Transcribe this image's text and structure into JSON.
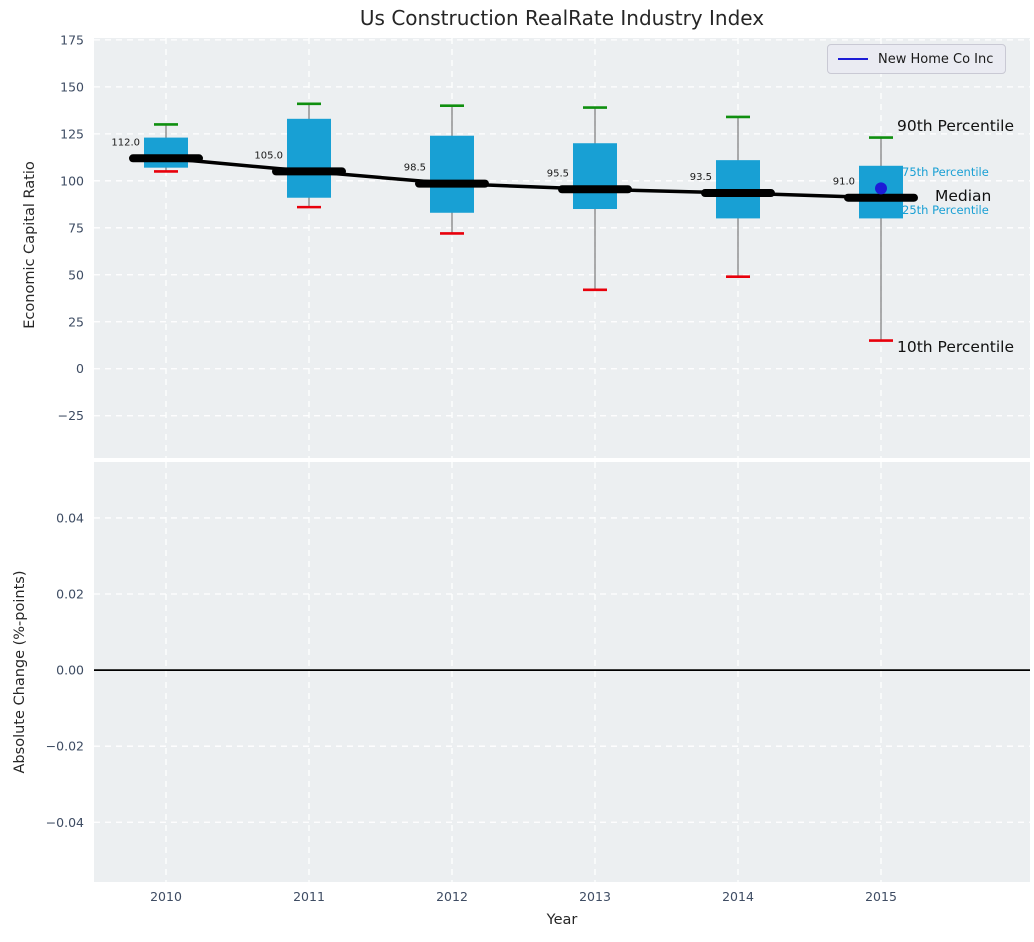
{
  "title": "Us Construction RealRate Industry Index",
  "legend": {
    "label": "New Home Co Inc"
  },
  "colors": {
    "panel_background": "#eceff1",
    "grid": "#ffffff",
    "box_fill": "#18a0d4",
    "whisker": "#7a7a7a",
    "cap_top": "#0f8f0f",
    "cap_bottom": "#e8000b",
    "median_line": "#000000",
    "company_marker": "#1c1cd6",
    "tick_label": "#3e4c63",
    "median_label": "#1a1a1a",
    "annotation_minor": "#189fd4",
    "zero_line": "#000000"
  },
  "chart_data": [
    {
      "type": "boxplot",
      "panel": "top",
      "title": "Us Construction RealRate Industry Index",
      "ylabel": "Economic Capital Ratio",
      "ylim": [
        -47.5,
        176
      ],
      "yticks": [
        {
          "v": 175,
          "label": "175"
        },
        {
          "v": 150,
          "label": "150"
        },
        {
          "v": 125,
          "label": "125"
        },
        {
          "v": 100,
          "label": "100"
        },
        {
          "v": 75,
          "label": "75"
        },
        {
          "v": 50,
          "label": "50"
        },
        {
          "v": 25,
          "label": "25"
        },
        {
          "v": 0,
          "label": "0"
        },
        {
          "v": -25,
          "label": "−25"
        }
      ],
      "categories": [
        "2010",
        "2011",
        "2012",
        "2013",
        "2014",
        "2015"
      ],
      "boxes": [
        {
          "year": "2010",
          "p10": 105,
          "q1": 107,
          "median": 112.0,
          "q3": 123,
          "p90": 130,
          "label": "112.0"
        },
        {
          "year": "2011",
          "p10": 86,
          "q1": 91,
          "median": 105.0,
          "q3": 133,
          "p90": 141,
          "label": "105.0"
        },
        {
          "year": "2012",
          "p10": 72,
          "q1": 83,
          "median": 98.5,
          "q3": 124,
          "p90": 140,
          "label": "98.5"
        },
        {
          "year": "2013",
          "p10": 42,
          "q1": 85,
          "median": 95.5,
          "q3": 120,
          "p90": 139,
          "label": "95.5"
        },
        {
          "year": "2014",
          "p10": 49,
          "q1": 80,
          "median": 93.5,
          "q3": 111,
          "p90": 134,
          "label": "93.5"
        },
        {
          "year": "2015",
          "p10": 15,
          "q1": 80,
          "median": 91.0,
          "q3": 108,
          "p90": 123,
          "label": "91.0"
        }
      ],
      "company_series": {
        "name": "New Home Co Inc",
        "points": [
          {
            "year": "2015",
            "value": 96
          }
        ]
      },
      "annotations": [
        {
          "text": "90th Percentile",
          "stat": "p90",
          "style": "major"
        },
        {
          "text": "75th Percentile",
          "stat": "q3",
          "style": "minor"
        },
        {
          "text": "Median",
          "stat": "median",
          "style": "major"
        },
        {
          "text": "25th Percentile",
          "stat": "q1",
          "style": "minor"
        },
        {
          "text": "10th Percentile",
          "stat": "p10",
          "style": "major"
        }
      ],
      "grid": true,
      "legend_position": "upper right"
    },
    {
      "type": "line",
      "panel": "bottom",
      "ylabel": "Absolute Change (%-points)",
      "xlabel": "Year",
      "ylim": [
        -0.0557,
        0.0547
      ],
      "yticks": [
        {
          "v": 0.04,
          "label": "0.04"
        },
        {
          "v": 0.02,
          "label": "0.02"
        },
        {
          "v": 0.0,
          "label": "0.00"
        },
        {
          "v": -0.02,
          "label": "−0.02"
        },
        {
          "v": -0.04,
          "label": "−0.04"
        }
      ],
      "categories": [
        "2010",
        "2011",
        "2012",
        "2013",
        "2014",
        "2015"
      ],
      "zero_line": 0.0,
      "grid": true
    }
  ]
}
